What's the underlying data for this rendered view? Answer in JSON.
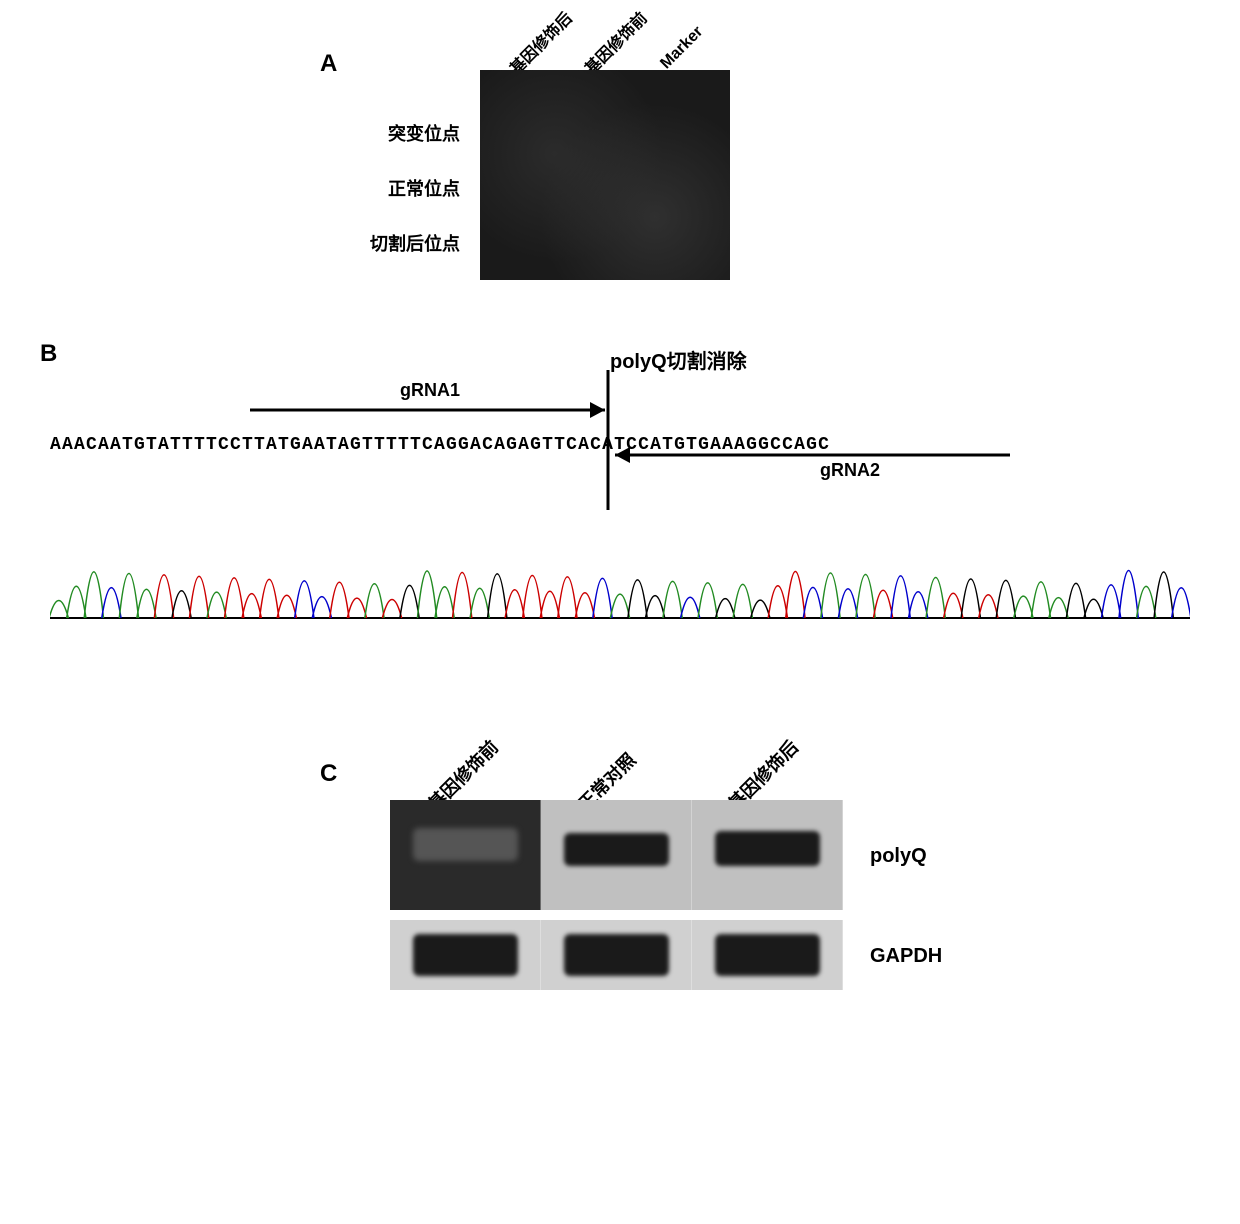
{
  "panelA": {
    "label": "A",
    "lane_labels": [
      "基因修饰后",
      "基因修饰前",
      "Marker"
    ],
    "row_labels": [
      "突变位点",
      "正常位点",
      "切割后位点"
    ],
    "gel_background": "#1a1a1a",
    "lane_label_fontsize": 16,
    "row_label_fontsize": 18
  },
  "panelB": {
    "label": "B",
    "title": "polyQ切割消除",
    "grna1_label": "gRNA1",
    "grna2_label": "gRNA2",
    "sequence": "AAACAATGTATTTTCCTTATGAATAGTTTTTCAGGACAGAGTTCACATCCATGTGAAAGGCCAGC",
    "cut_position_index": 32,
    "arrow_color": "#000000",
    "cut_line_color": "#000000",
    "chromatogram": {
      "peak_count": 65,
      "base_colors": {
        "A": "#228b22",
        "T": "#cc0000",
        "G": "#000000",
        "C": "#0000cc"
      },
      "baseline_color": "#000000",
      "peak_height_min": 35,
      "peak_height_max": 95
    },
    "title_fontsize": 20,
    "label_fontsize": 18,
    "seq_fontsize": 18
  },
  "panelC": {
    "label": "C",
    "lane_labels": [
      "基因修饰前",
      "正常对照",
      "基因修饰后"
    ],
    "row1_label": "polyQ",
    "row2_label": "GAPDH",
    "lane_width": 150,
    "polyQ_height": 110,
    "gapdh_height": 70,
    "band_color": "#1a1a1a",
    "lane_bg_light": "#c0c0c0",
    "lane_bg_dark": "#2a2a2a",
    "label_fontsize": 20
  }
}
